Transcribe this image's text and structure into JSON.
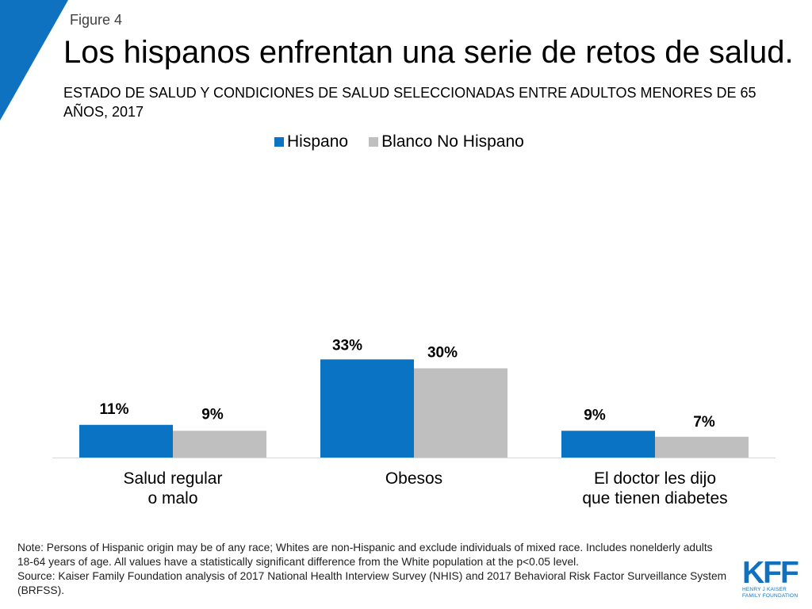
{
  "header": {
    "figure_label": "Figure 4",
    "title": "Los hispanos enfrentan una serie de retos de salud.",
    "subtitle": "ESTADO DE SALUD Y CONDICIONES DE SALUD SELECCIONADAS ENTRE ADULTOS MENORES DE 65 AÑOS, 2017"
  },
  "colors": {
    "hispano": "#0a73c4",
    "blanco": "#bfbfbf",
    "accent": "#0f72c0"
  },
  "chart_data": {
    "type": "bar",
    "title": "ESTADO DE SALUD Y CONDICIONES DE SALUD SELECCIONADAS ENTRE ADULTOS MENORES DE 65 AÑOS, 2017",
    "categories": [
      "Salud regular o malo",
      "Obesos",
      "El doctor les dijo que tienen diabetes"
    ],
    "category_lines": [
      [
        "Salud regular",
        "o malo"
      ],
      [
        "Obesos"
      ],
      [
        "El doctor les dijo",
        "que tienen diabetes"
      ]
    ],
    "series": [
      {
        "name": "Hispano",
        "values": [
          11,
          33,
          9
        ],
        "labels": [
          "11%",
          "33%",
          "9%"
        ]
      },
      {
        "name": "Blanco No Hispano",
        "values": [
          9,
          30,
          7
        ],
        "labels": [
          "9%",
          "30%",
          "7%"
        ]
      }
    ],
    "ylim": [
      0,
      100
    ],
    "xlabel": "",
    "ylabel": "",
    "grid": false,
    "legend_position": "top"
  },
  "footer": {
    "note": "Note: Persons of Hispanic origin may be of any race; Whites are non-Hispanic and exclude individuals of mixed race. Includes nonelderly adults 18-64 years of age. All values have a statistically significant difference from the White population at the p<0.05 level.",
    "source": "Source: Kaiser Family Foundation analysis of 2017 National Health Interview Survey (NHIS) and 2017 Behavioral Risk Factor Surveillance System (BRFSS)."
  },
  "logo": {
    "text": "KFF",
    "line1": "HENRY J KAISER",
    "line2": "FAMILY FOUNDATION"
  }
}
